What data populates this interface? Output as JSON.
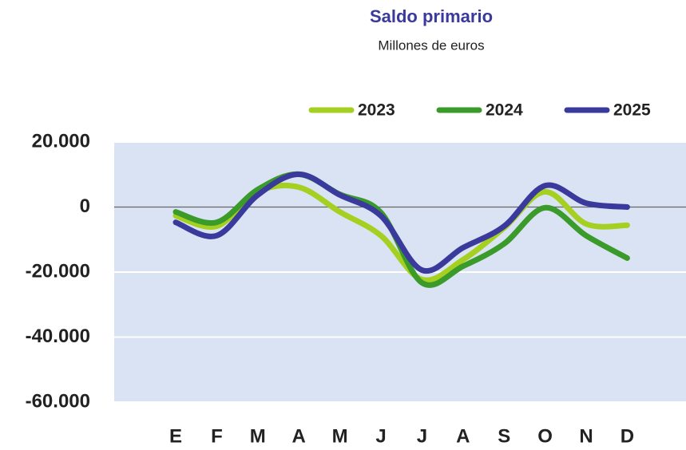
{
  "chart_data": {
    "type": "line",
    "title": "Saldo primario",
    "subtitle": "Millones de euros",
    "categories": [
      "E",
      "F",
      "M",
      "A",
      "M",
      "J",
      "J",
      "A",
      "S",
      "O",
      "N",
      "D"
    ],
    "series": [
      {
        "name": "2023",
        "color": "#a6d021",
        "values": [
          -2700,
          -5900,
          4700,
          6100,
          -1500,
          -8800,
          -22300,
          -16200,
          -6400,
          4700,
          -5200,
          -5600
        ]
      },
      {
        "name": "2024",
        "color": "#3a9a2a",
        "values": [
          -1500,
          -4700,
          5400,
          10100,
          3900,
          -1700,
          -23300,
          -18200,
          -11300,
          -200,
          -8800,
          -15700
        ]
      },
      {
        "name": "2025",
        "color": "#3a3a9c",
        "values": [
          -4700,
          -8800,
          3700,
          10100,
          3700,
          -2700,
          -19400,
          -12500,
          -5900,
          6600,
          1200,
          0
        ]
      }
    ],
    "ylim": [
      -60000,
      20000
    ],
    "yticks": [
      {
        "value": 20000,
        "label": "20.000"
      },
      0,
      {
        "value": -20000,
        "label": "-20.000"
      },
      {
        "value": -40000,
        "label": "-40.000"
      },
      {
        "value": -60000,
        "label": "-60.000"
      }
    ],
    "grid": true,
    "legend": "top"
  }
}
